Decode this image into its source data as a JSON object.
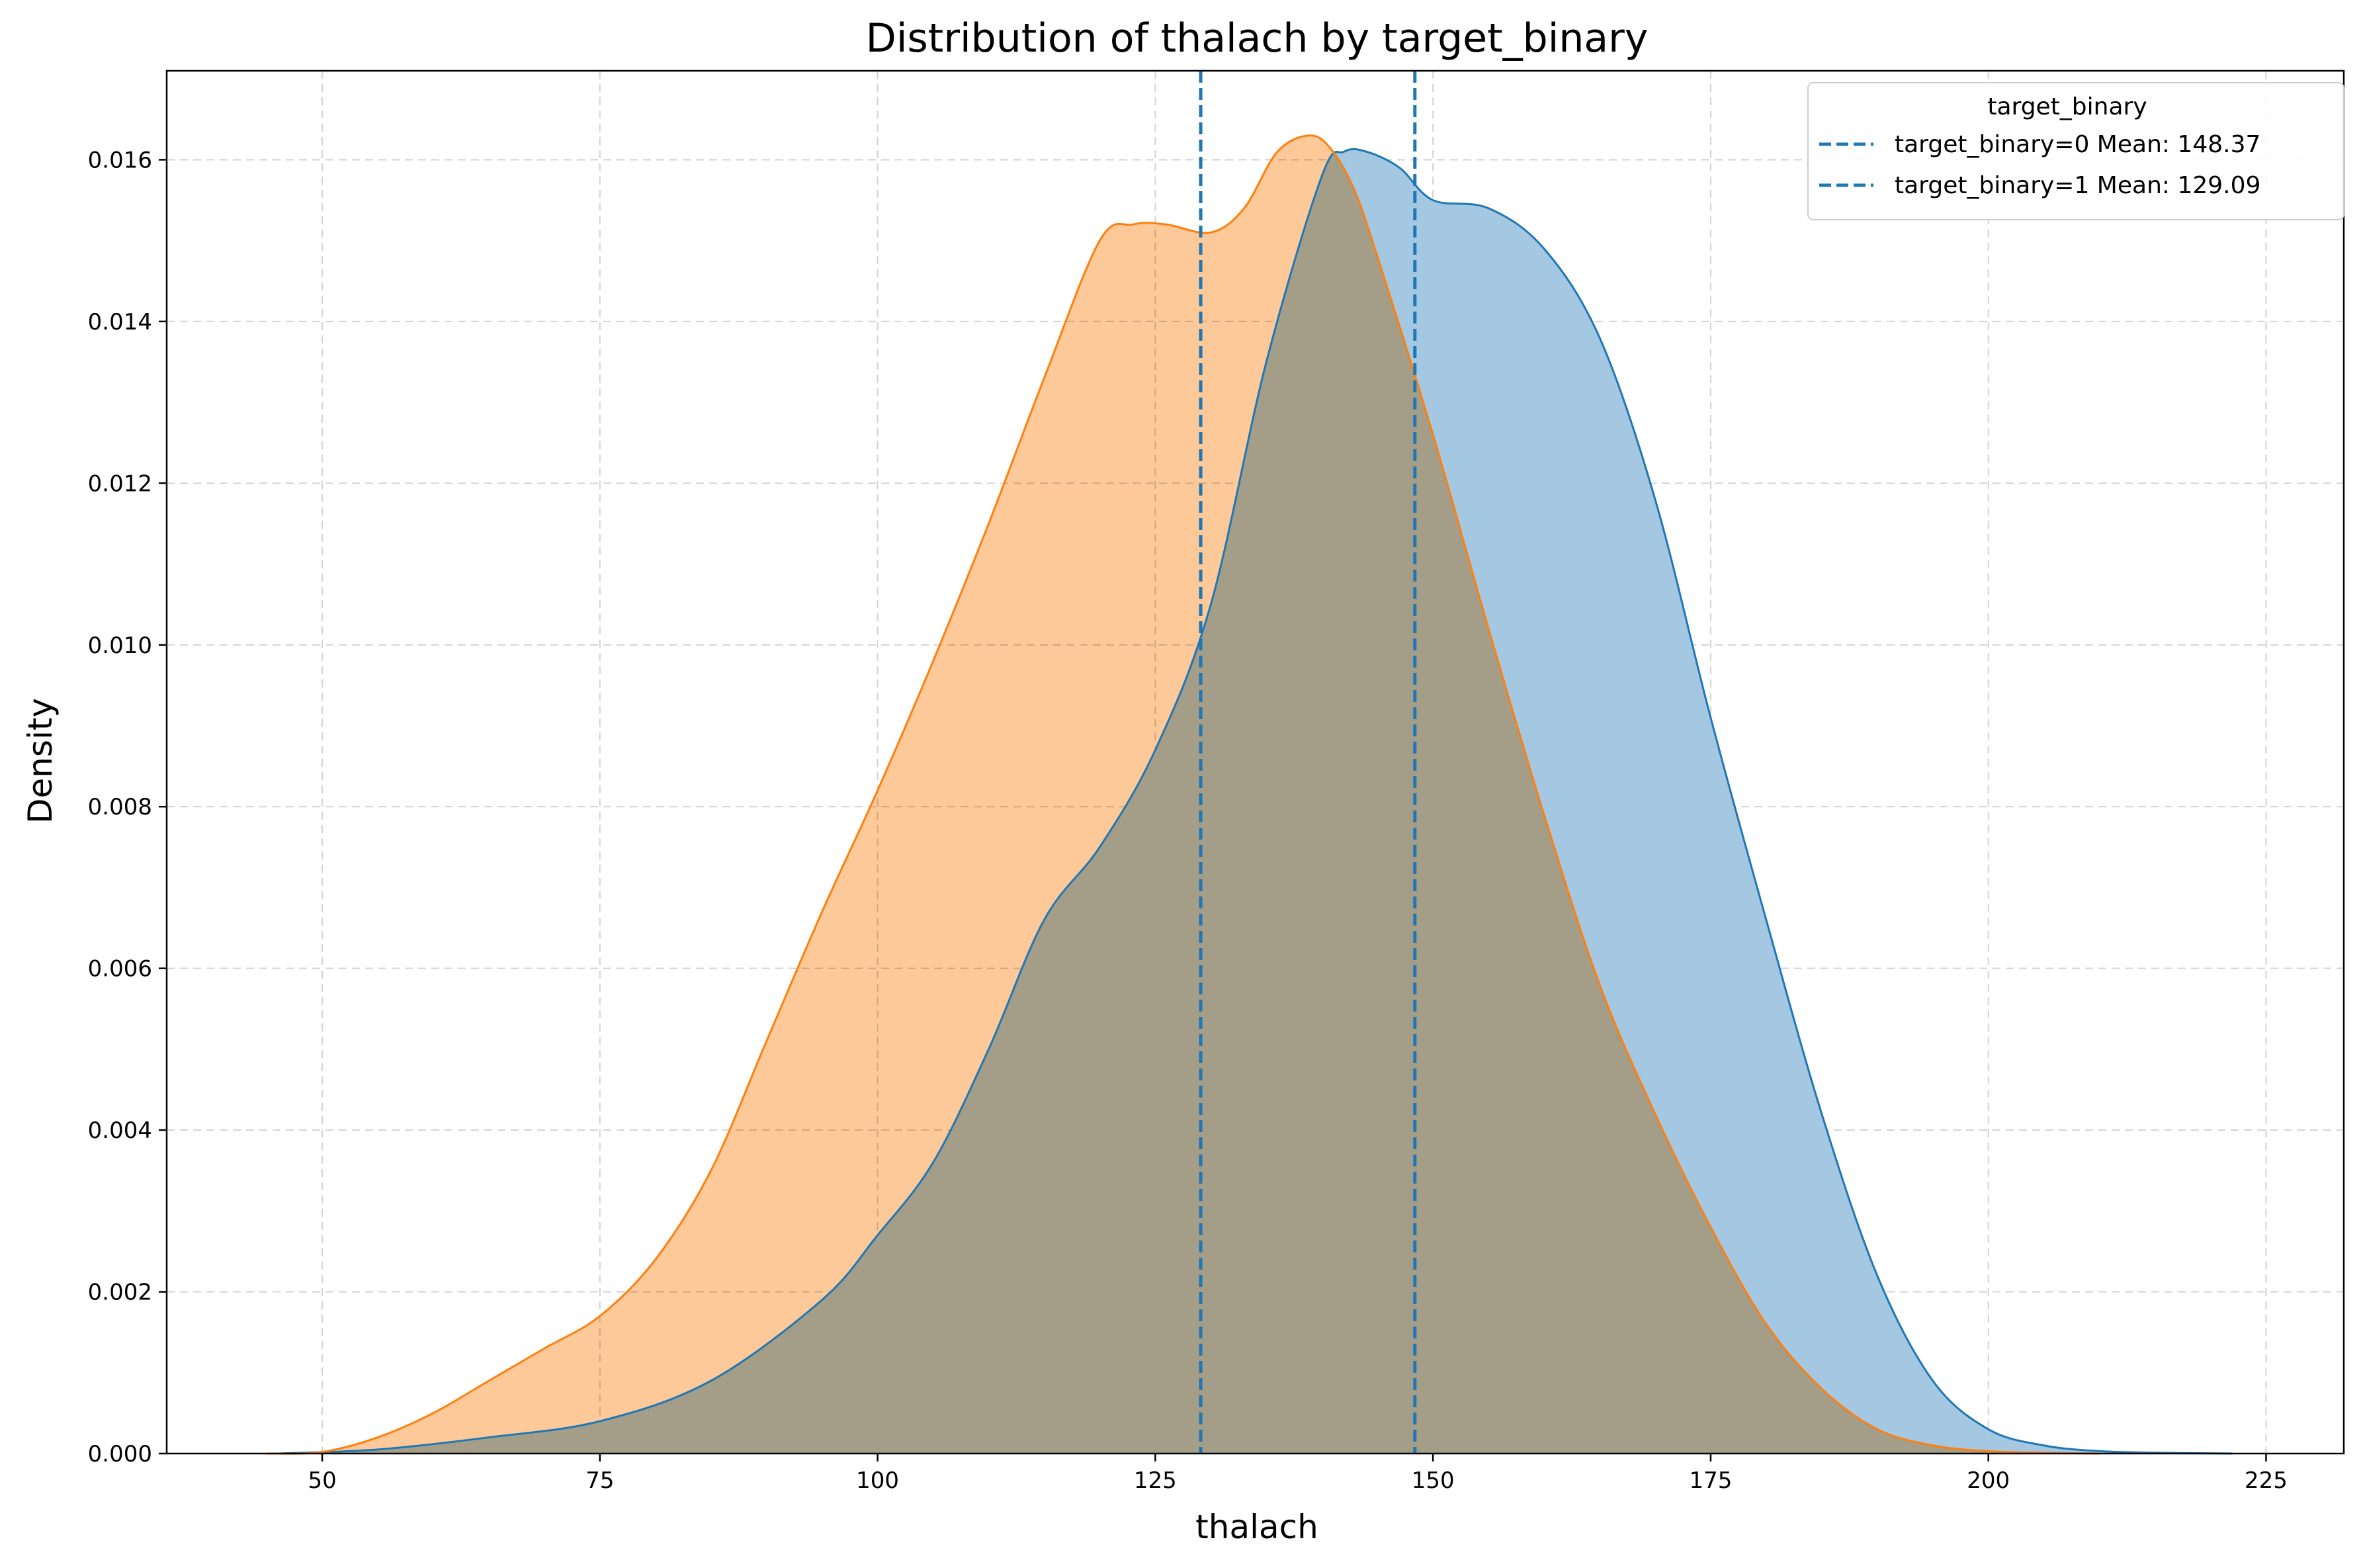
{
  "chart_data": {
    "type": "area",
    "title": "Distribution of thalach by target_binary",
    "xlabel": "thalach",
    "ylabel": "Density",
    "xlim": [
      36,
      232
    ],
    "ylim": [
      0,
      0.0171
    ],
    "x_ticks": [
      50,
      75,
      100,
      125,
      150,
      175,
      200,
      225
    ],
    "y_ticks": [
      0.0,
      0.002,
      0.004,
      0.006,
      0.008,
      0.01,
      0.012,
      0.014,
      0.016
    ],
    "y_tick_labels": [
      "0.000",
      "0.002",
      "0.004",
      "0.006",
      "0.008",
      "0.010",
      "0.012",
      "0.014",
      "0.016"
    ],
    "grid": true,
    "legend": {
      "title": "target_binary",
      "placement": "top-right",
      "entries": [
        {
          "label": "target_binary=0 Mean: 148.37",
          "color": "#1f77b4"
        },
        {
          "label": "target_binary=1 Mean: 129.09",
          "color": "#1f77b4"
        }
      ]
    },
    "mean_lines": [
      {
        "x": 148.37,
        "color": "#1f77b4"
      },
      {
        "x": 129.09,
        "color": "#1f77b4"
      }
    ],
    "series": [
      {
        "group": "0",
        "line_color": "#1f77b4",
        "fill_color": "#a5c8e2",
        "x": [
          46,
          55,
          65,
          75,
          85,
          95,
          100,
          105,
          110,
          115,
          120,
          125,
          130,
          135,
          140,
          142,
          144,
          147,
          150,
          155,
          160,
          165,
          170,
          175,
          180,
          185,
          190,
          195,
          200,
          205,
          210,
          215,
          222
        ],
        "y": [
          0.0,
          5e-05,
          0.0002,
          0.0004,
          0.0009,
          0.0019,
          0.0027,
          0.0036,
          0.005,
          0.0066,
          0.0075,
          0.0087,
          0.0105,
          0.0135,
          0.0158,
          0.0161,
          0.0161,
          0.0159,
          0.0155,
          0.0154,
          0.0149,
          0.0138,
          0.0118,
          0.0091,
          0.0066,
          0.0042,
          0.0022,
          0.0009,
          0.0003,
          0.0001,
          3e-05,
          1e-05,
          0.0
        ]
      },
      {
        "group": "1",
        "line_color": "#ff7f0e",
        "fill_color": "#fdc999",
        "x": [
          45,
          50,
          55,
          60,
          65,
          70,
          75,
          80,
          85,
          90,
          95,
          100,
          105,
          110,
          115,
          120,
          123,
          126,
          130,
          133,
          136,
          139,
          141,
          143,
          145,
          150,
          155,
          160,
          165,
          170,
          175,
          180,
          185,
          190,
          195,
          200,
          205,
          210
        ],
        "y": [
          0.0,
          2e-05,
          0.0002,
          0.0005,
          0.0009,
          0.0013,
          0.0017,
          0.0024,
          0.0035,
          0.0051,
          0.0067,
          0.0082,
          0.0098,
          0.0115,
          0.0133,
          0.015,
          0.0152,
          0.0152,
          0.0151,
          0.0154,
          0.0161,
          0.0163,
          0.0161,
          0.0156,
          0.0148,
          0.0126,
          0.0102,
          0.0079,
          0.0058,
          0.0042,
          0.0028,
          0.0016,
          0.0008,
          0.0003,
          0.0001,
          3e-05,
          1e-05,
          0.0
        ]
      }
    ]
  }
}
